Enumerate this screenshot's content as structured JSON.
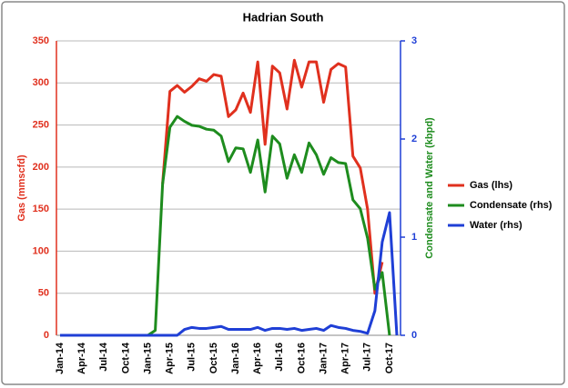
{
  "chart_data": {
    "type": "line",
    "title": "Hadrian South",
    "ylabel": "Gas (mmscfd)",
    "y2label": "Condensate and Water (kbpd)",
    "categories": [
      "Jan-14",
      null,
      null,
      "Apr-14",
      null,
      null,
      "Jul-14",
      null,
      null,
      "Oct-14",
      null,
      null,
      "Jan-15",
      null,
      null,
      "Apr-15",
      null,
      null,
      "Jul-15",
      null,
      null,
      "Oct-15",
      null,
      null,
      "Jan-16",
      null,
      null,
      "Apr-16",
      null,
      null,
      "Jul-16",
      null,
      null,
      "Oct-16",
      null,
      null,
      "Jan-17",
      null,
      null,
      "Apr-17",
      null,
      null,
      "Jul-17",
      null,
      null,
      "Oct-17",
      null
    ],
    "series": [
      {
        "name": "Gas (lhs)",
        "color": "#e0301e",
        "axis": "y",
        "values": [
          null,
          null,
          null,
          null,
          null,
          null,
          null,
          null,
          null,
          null,
          null,
          null,
          null,
          null,
          180,
          290,
          297,
          289,
          296,
          305,
          302,
          310,
          308,
          260,
          268,
          288,
          265,
          325,
          227,
          320,
          312,
          269,
          327,
          295,
          325,
          325,
          277,
          316,
          323,
          319,
          213,
          199,
          150,
          50,
          87,
          null,
          null
        ]
      },
      {
        "name": "Condensate (rhs)",
        "color": "#1e8c1e",
        "axis": "y2",
        "values": [
          0,
          0,
          0,
          0,
          0,
          0,
          0,
          0,
          0,
          0,
          0,
          0,
          0,
          0.05,
          1.54,
          2.12,
          2.23,
          2.18,
          2.14,
          2.13,
          2.1,
          2.09,
          2.03,
          1.77,
          1.91,
          1.9,
          1.66,
          1.99,
          1.46,
          2.03,
          1.95,
          1.6,
          1.84,
          1.66,
          1.96,
          1.84,
          1.64,
          1.81,
          1.76,
          1.75,
          1.38,
          1.29,
          0.99,
          0.47,
          0.64,
          0,
          null
        ]
      },
      {
        "name": "Water (rhs)",
        "color": "#1f3fd6",
        "axis": "y2",
        "values": [
          0,
          0,
          0,
          0,
          0,
          0,
          0,
          0,
          0,
          0,
          0,
          0,
          0,
          0,
          0,
          0,
          0,
          0.06,
          0.08,
          0.07,
          0.07,
          0.08,
          0.09,
          0.06,
          0.06,
          0.06,
          0.06,
          0.08,
          0.05,
          0.07,
          0.07,
          0.06,
          0.07,
          0.05,
          0.06,
          0.07,
          0.05,
          0.1,
          0.08,
          0.07,
          0.05,
          0.04,
          0.02,
          0.25,
          0.95,
          1.25,
          0
        ]
      }
    ],
    "ylim": [
      0,
      350
    ],
    "yticks": [
      0,
      50,
      100,
      150,
      200,
      250,
      300,
      350
    ],
    "y2lim": [
      0,
      3
    ],
    "y2ticks": [
      0,
      1,
      2,
      3
    ],
    "grid": true,
    "legend": "right"
  }
}
